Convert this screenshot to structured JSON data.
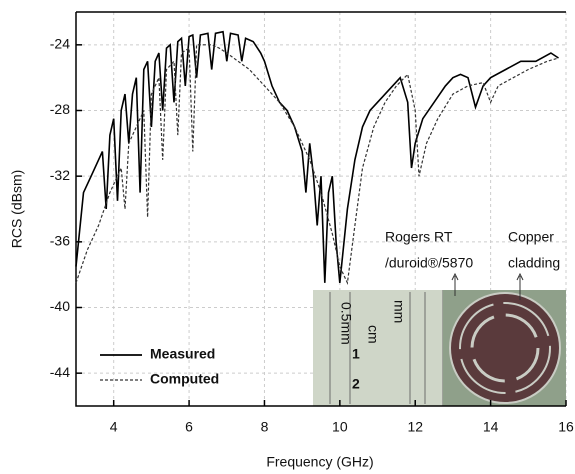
{
  "chart_data": {
    "type": "line",
    "xlabel": "Frequency (GHz)",
    "ylabel": "RCS (dBsm)",
    "xlim": [
      3,
      16
    ],
    "xticks": [
      4,
      6,
      8,
      10,
      12,
      14,
      16
    ],
    "ylim": [
      -46,
      -22
    ],
    "yticks": [
      -44,
      -40,
      -36,
      -32,
      -28,
      -24
    ],
    "grid": true,
    "legend": "lower left",
    "series": [
      {
        "name": "Measured",
        "color": "#000000",
        "style": "solid",
        "x": [
          3.0,
          3.2,
          3.4,
          3.6,
          3.7,
          3.8,
          3.9,
          4.0,
          4.1,
          4.2,
          4.3,
          4.4,
          4.5,
          4.6,
          4.7,
          4.8,
          4.9,
          5.0,
          5.1,
          5.2,
          5.3,
          5.4,
          5.5,
          5.6,
          5.7,
          5.8,
          5.9,
          6.0,
          6.1,
          6.2,
          6.3,
          6.5,
          6.6,
          6.7,
          6.9,
          7.0,
          7.1,
          7.3,
          7.4,
          7.5,
          7.7,
          7.9,
          8.0,
          8.2,
          8.4,
          8.6,
          8.8,
          9.0,
          9.1,
          9.2,
          9.3,
          9.4,
          9.5,
          9.6,
          9.7,
          9.8,
          9.9,
          10.0,
          10.2,
          10.4,
          10.6,
          10.8,
          11.0,
          11.2,
          11.4,
          11.6,
          11.8,
          11.9,
          12.0,
          12.2,
          12.5,
          12.8,
          13.0,
          13.2,
          13.4,
          13.6,
          13.8,
          14.0,
          14.4,
          14.8,
          15.2,
          15.6,
          15.8
        ],
        "values": [
          -37.5,
          -33,
          -32,
          -31,
          -30.5,
          -34,
          -29.5,
          -28.5,
          -33.5,
          -28,
          -27,
          -30,
          -27,
          -26,
          -33,
          -25.5,
          -25,
          -29,
          -25,
          -24.5,
          -28,
          -24.2,
          -24,
          -27.5,
          -23.8,
          -23.6,
          -26.5,
          -23.5,
          -23.4,
          -26,
          -23.4,
          -23.3,
          -25.5,
          -23.3,
          -23.2,
          -25,
          -23.3,
          -23.4,
          -25,
          -23.6,
          -23.8,
          -24.5,
          -25,
          -26.5,
          -27.5,
          -28,
          -29,
          -30.5,
          -33,
          -30,
          -32,
          -35,
          -32,
          -38.5,
          -33,
          -32,
          -36,
          -38.5,
          -34,
          -31,
          -29,
          -28,
          -27.5,
          -27,
          -26.5,
          -26,
          -27.5,
          -31.5,
          -30,
          -28.5,
          -27.5,
          -26.5,
          -26,
          -25.8,
          -26,
          -27.8,
          -26.5,
          -26,
          -25.5,
          -25,
          -25,
          -24.5,
          -24.8
        ]
      },
      {
        "name": "Computed",
        "color": "#333333",
        "style": "dashed",
        "x": [
          3.0,
          3.3,
          3.6,
          3.9,
          4.2,
          4.3,
          4.4,
          4.6,
          4.8,
          4.9,
          5.0,
          5.2,
          5.3,
          5.4,
          5.6,
          5.7,
          5.8,
          6.0,
          6.1,
          6.2,
          6.4,
          6.6,
          6.8,
          7.0,
          7.3,
          7.6,
          8.0,
          8.4,
          8.8,
          9.2,
          9.5,
          9.8,
          10.0,
          10.2,
          10.4,
          10.6,
          10.9,
          11.2,
          11.5,
          11.8,
          12.0,
          12.1,
          12.3,
          12.6,
          13.0,
          13.4,
          13.8,
          14.0,
          14.2,
          14.6,
          15.0,
          15.5,
          15.8
        ],
        "values": [
          -38.5,
          -36.5,
          -35,
          -33,
          -31.5,
          -34,
          -30,
          -29,
          -28,
          -34.5,
          -27,
          -26,
          -31,
          -25.5,
          -25,
          -29.5,
          -24.5,
          -24.2,
          -30.5,
          -24,
          -24,
          -24,
          -24.2,
          -24.5,
          -25,
          -25.5,
          -26.5,
          -27.5,
          -29,
          -31,
          -33,
          -35.5,
          -37.5,
          -38.5,
          -35,
          -31.5,
          -29,
          -27.5,
          -26.5,
          -25.8,
          -28,
          -32,
          -30,
          -28.5,
          -27,
          -26.5,
          -26.3,
          -27.5,
          -26.5,
          -26,
          -25.5,
          -25,
          -24.8
        ]
      }
    ],
    "annotations": [
      "Rogers RT",
      "/duroid®/5870",
      "Copper",
      "cladding"
    ],
    "inset_labels": [
      "cm",
      "1",
      "2",
      "0.5mm",
      "mm"
    ]
  }
}
